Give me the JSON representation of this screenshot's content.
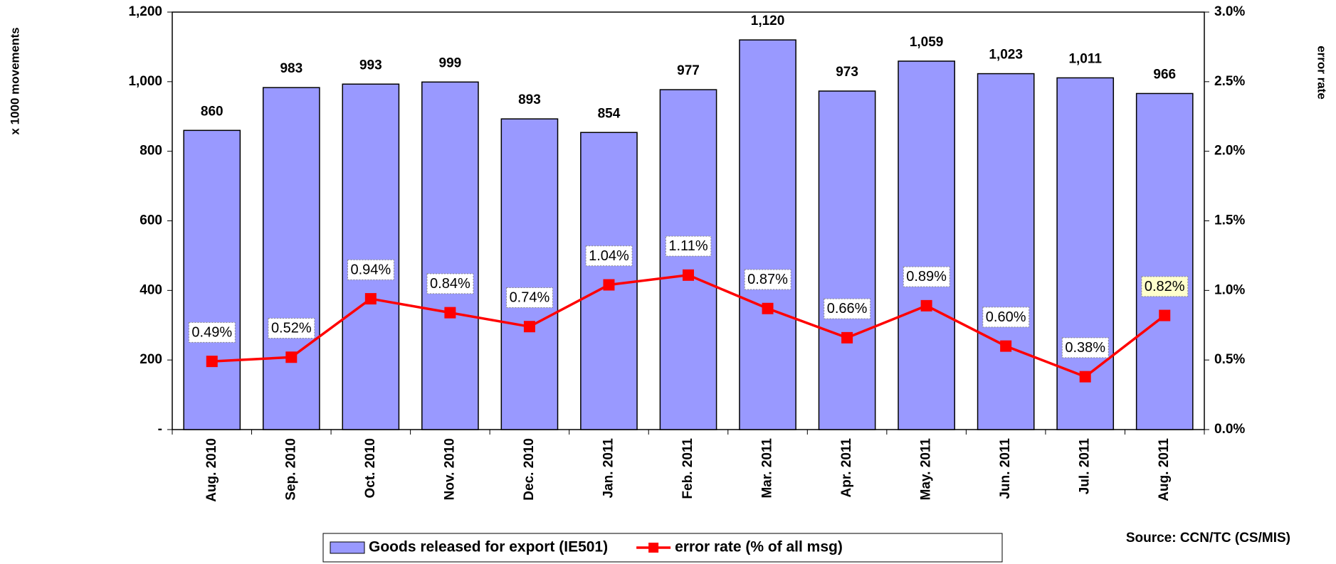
{
  "chart_data": {
    "type": "bar_line",
    "categories": [
      "Aug. 2010",
      "Sep. 2010",
      "Oct. 2010",
      "Nov. 2010",
      "Dec. 2010",
      "Jan. 2011",
      "Feb. 2011",
      "Mar. 2011",
      "Apr. 2011",
      "May. 2011",
      "Jun. 2011",
      "Jul. 2011",
      "Aug. 2011"
    ],
    "series": [
      {
        "name": "Goods released for export (IE501)",
        "type": "bar",
        "color": "#9999ff",
        "values": [
          860,
          983,
          993,
          999,
          893,
          854,
          977,
          1120,
          973,
          1059,
          1023,
          1011,
          966
        ],
        "value_labels": [
          "860",
          "983",
          "993",
          "999",
          "893",
          "854",
          "977",
          "1,120",
          "973",
          "1,059",
          "1,023",
          "1,011",
          "966"
        ]
      },
      {
        "name": "error rate (% of all msg)",
        "type": "line",
        "axis": "y2",
        "color": "#ff0000",
        "values": [
          0.49,
          0.52,
          0.94,
          0.84,
          0.74,
          1.04,
          1.11,
          0.87,
          0.66,
          0.89,
          0.6,
          0.38,
          0.82
        ],
        "value_labels": [
          "0.49%",
          "0.52%",
          "0.94%",
          "0.84%",
          "0.74%",
          "1.04%",
          "1.11%",
          "0.87%",
          "0.66%",
          "0.89%",
          "0.60%",
          "0.38%",
          "0.82%"
        ]
      }
    ],
    "ylabel": "x 1000 movements",
    "y2label": "error rate",
    "ylim": [
      0,
      1200
    ],
    "yticks": [
      {
        "value": 0,
        "label": "-"
      },
      200,
      400,
      600,
      800,
      {
        "value": 1000,
        "label": "1,000"
      },
      {
        "value": 1200,
        "label": "1,200"
      }
    ],
    "y2lim": [
      0,
      3
    ],
    "y2ticks": [
      {
        "value": 0,
        "label": "0.0%"
      },
      {
        "value": 0.5,
        "label": "0.5%"
      },
      {
        "value": 1,
        "label": "1.0%"
      },
      {
        "value": 1.5,
        "label": "1.5%"
      },
      {
        "value": 2,
        "label": "2.0%"
      },
      {
        "value": 2.5,
        "label": "2.5%"
      },
      {
        "value": 3,
        "label": "3.0%"
      }
    ],
    "source": "Source: CCN/TC (CS/MIS)",
    "legend": "bottom"
  }
}
